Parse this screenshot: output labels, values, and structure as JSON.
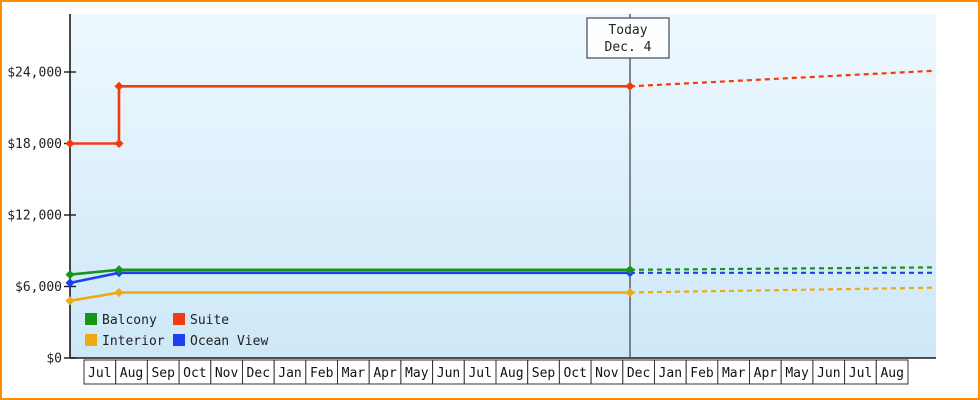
{
  "chart_data": {
    "type": "line",
    "title": "",
    "y_axis": {
      "ylim": [
        0,
        28800
      ],
      "ticks": [
        {
          "value": 0,
          "label": "$0"
        },
        {
          "value": 6000,
          "label": "$6,000"
        },
        {
          "value": 12000,
          "label": "$12,000"
        },
        {
          "value": 18000,
          "label": "$18,000"
        },
        {
          "value": 24000,
          "label": "$24,000"
        }
      ]
    },
    "x_axis": {
      "months": [
        "Jul",
        "Aug",
        "Sep",
        "Oct",
        "Nov",
        "Dec",
        "Jan",
        "Feb",
        "Mar",
        "Apr",
        "May",
        "Jun",
        "Jul",
        "Aug",
        "Sep",
        "Oct",
        "Nov",
        "Dec",
        "Jan",
        "Feb",
        "Mar",
        "Apr",
        "May",
        "Jun",
        "Jul",
        "Aug"
      ]
    },
    "today": {
      "line1": "Today",
      "line2": "Dec. 4",
      "month_position": 17.13
    },
    "series": [
      {
        "name": "Interior",
        "color": "#efa912",
        "history": [
          [
            0,
            4800
          ],
          [
            1.5,
            5500
          ],
          [
            17.13,
            5500
          ]
        ],
        "forecast": [
          [
            17.13,
            5500
          ],
          [
            26.4,
            5900
          ]
        ]
      },
      {
        "name": "Ocean View",
        "color": "#1c3ff0",
        "history": [
          [
            0,
            6300
          ],
          [
            1.5,
            7150
          ],
          [
            17.13,
            7150
          ]
        ],
        "forecast": [
          [
            17.13,
            7150
          ],
          [
            26.4,
            7150
          ]
        ]
      },
      {
        "name": "Balcony",
        "color": "#169616",
        "history": [
          [
            0,
            7000
          ],
          [
            1.5,
            7400
          ],
          [
            17.13,
            7400
          ]
        ],
        "forecast": [
          [
            17.13,
            7400
          ],
          [
            26.4,
            7600
          ]
        ]
      },
      {
        "name": "Suite",
        "color": "#f23c10",
        "history": [
          [
            0,
            18000
          ],
          [
            1.5,
            18000
          ],
          [
            1.5,
            22800
          ],
          [
            17.13,
            22800
          ]
        ],
        "forecast": [
          [
            17.13,
            22800
          ],
          [
            26.4,
            24100
          ]
        ]
      }
    ],
    "legend": [
      {
        "label": "Balcony",
        "color": "#169616"
      },
      {
        "label": "Suite",
        "color": "#f23c10"
      },
      {
        "label": "Interior",
        "color": "#efa912"
      },
      {
        "label": "Ocean View",
        "color": "#1c3ff0"
      }
    ],
    "colors": {
      "frame_border": "#ff8c00",
      "plot_bg_top": "#eef8fe",
      "plot_bg_bottom": "#cde8f8",
      "axis": "#1a1a1a",
      "today_line": "#4a4a55",
      "text": "#222222"
    }
  }
}
